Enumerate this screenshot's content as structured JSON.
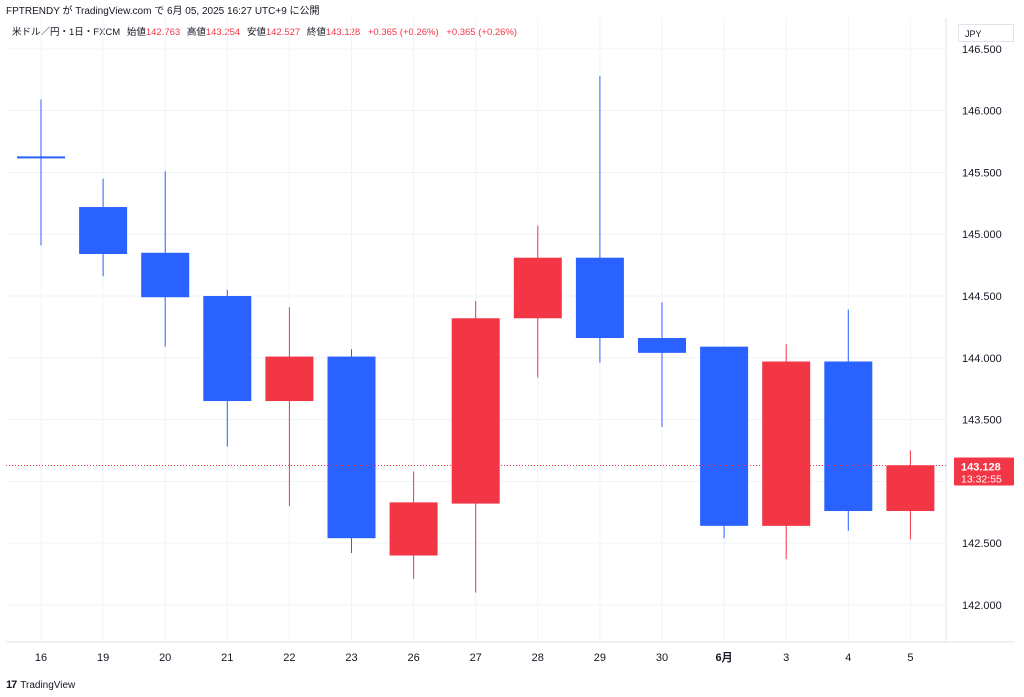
{
  "header": {
    "publish_text": "FPTRENDY が TradingView.com で 6月 05, 2025 16:27 UTC+9 に公開"
  },
  "legend": {
    "symbol": "米ドル／円・1日・FXCM",
    "open_label": "始値",
    "open_value": "142.763",
    "high_label": "高値",
    "high_value": "143.254",
    "low_label": "安値",
    "low_value": "142.527",
    "close_label": "終値",
    "close_value": "143.128",
    "change": "+0.365 (+0.26%)",
    "change_repeat": "+0.365 (+0.26%)"
  },
  "currency_label": "JPY",
  "footer": {
    "logo": "17",
    "brand": "TradingView"
  },
  "colors": {
    "up": "#f23645",
    "down": "#2962ff",
    "grid": "#f0f3fa",
    "price_line": "#f23645"
  },
  "chart_data": {
    "type": "candlestick",
    "ylim": [
      141.7,
      146.75
    ],
    "y_ticks": [
      "142.000",
      "142.500",
      "143.000",
      "143.500",
      "144.000",
      "144.500",
      "145.000",
      "145.500",
      "146.000",
      "146.500"
    ],
    "categories": [
      "16",
      "19",
      "20",
      "21",
      "22",
      "23",
      "26",
      "27",
      "28",
      "29",
      "30",
      "6月",
      "3",
      "4",
      "5"
    ],
    "candles": [
      {
        "open": 145.63,
        "high": 146.09,
        "low": 144.91,
        "close": 145.62
      },
      {
        "open": 145.22,
        "high": 145.45,
        "low": 144.66,
        "close": 144.84
      },
      {
        "open": 144.85,
        "high": 145.51,
        "low": 144.09,
        "close": 144.49
      },
      {
        "open": 144.5,
        "high": 144.55,
        "low": 143.28,
        "close": 143.65
      },
      {
        "open": 143.65,
        "high": 144.41,
        "low": 142.8,
        "close": 144.01
      },
      {
        "open": 144.01,
        "high": 144.07,
        "low": 142.42,
        "close": 142.54
      },
      {
        "open": 142.4,
        "high": 143.08,
        "low": 142.21,
        "close": 142.83
      },
      {
        "open": 142.82,
        "high": 144.46,
        "low": 142.1,
        "close": 144.32
      },
      {
        "open": 144.32,
        "high": 145.07,
        "low": 143.84,
        "close": 144.81
      },
      {
        "open": 144.81,
        "high": 146.28,
        "low": 143.96,
        "close": 144.16
      },
      {
        "open": 144.16,
        "high": 144.45,
        "low": 143.44,
        "close": 144.04
      },
      {
        "open": 144.09,
        "high": 144.09,
        "low": 142.54,
        "close": 142.64
      },
      {
        "open": 142.64,
        "high": 144.11,
        "low": 142.37,
        "close": 143.97
      },
      {
        "open": 143.97,
        "high": 144.39,
        "low": 142.6,
        "close": 142.76
      },
      {
        "open": 142.76,
        "high": 143.25,
        "low": 142.53,
        "close": 143.13
      }
    ],
    "last_price_label": "143.128",
    "countdown_label": "13:32:55",
    "last_price": 143.128
  }
}
